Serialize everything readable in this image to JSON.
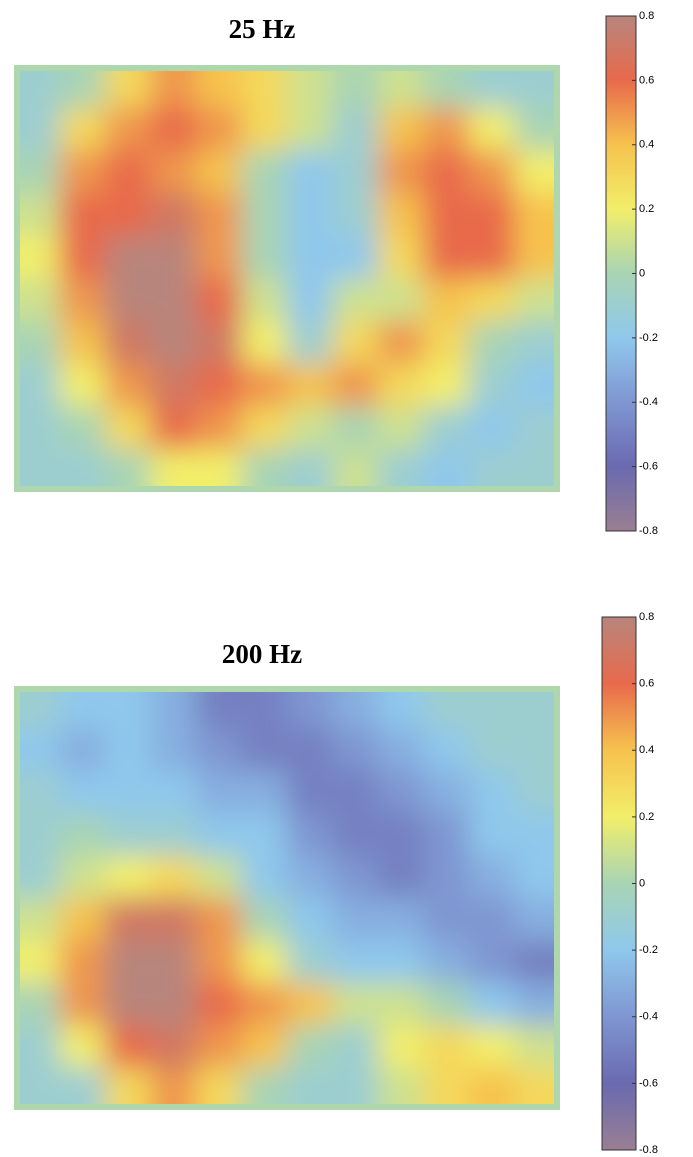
{
  "chart_data": [
    {
      "type": "heatmap",
      "title": "25 Hz",
      "zlim": [
        -0.8,
        0.8
      ],
      "zticks": [
        0.8,
        0.6,
        0.4,
        0.2,
        0,
        -0.2,
        -0.4,
        -0.6,
        -0.8
      ],
      "colormap": [
        "#9a7f93",
        "#6a6ab0",
        "#7f96d2",
        "#8fc8ec",
        "#a8d4b4",
        "#f2ee6a",
        "#f6c24e",
        "#e86a4c",
        "#b8857c"
      ],
      "values": [
        [
          -0.1,
          0,
          0.3,
          0.5,
          0.4,
          0.3,
          0.1,
          0,
          0.1,
          0,
          -0.1,
          -0.1
        ],
        [
          -0.1,
          0.3,
          0.5,
          0.6,
          0.5,
          0.3,
          0.1,
          -0.1,
          0.4,
          0.5,
          0.2,
          0
        ],
        [
          0,
          0.5,
          0.6,
          0.5,
          0.4,
          0,
          -0.2,
          -0.1,
          0.5,
          0.6,
          0.5,
          0.2
        ],
        [
          0.1,
          0.6,
          0.6,
          0.7,
          0.5,
          0,
          -0.2,
          -0.1,
          0.4,
          0.6,
          0.6,
          0.4
        ],
        [
          0.2,
          0.6,
          0.8,
          0.8,
          0.5,
          0,
          -0.2,
          -0.2,
          0.3,
          0.6,
          0.6,
          0.4
        ],
        [
          0.1,
          0.5,
          0.8,
          0.8,
          0.6,
          0.1,
          -0.2,
          0.1,
          0.1,
          0.4,
          0.3,
          0.1
        ],
        [
          0,
          0.4,
          0.7,
          0.8,
          0.7,
          0.2,
          -0.1,
          0.3,
          0.5,
          0.3,
          0,
          -0.1
        ],
        [
          -0.1,
          0.2,
          0.5,
          0.7,
          0.6,
          0.5,
          0.4,
          0.5,
          0.3,
          0.2,
          -0.1,
          -0.2
        ],
        [
          -0.1,
          0,
          0.3,
          0.6,
          0.5,
          0.3,
          0.1,
          0,
          0.1,
          -0.1,
          -0.2,
          -0.1
        ],
        [
          -0.1,
          -0.1,
          0,
          0.2,
          0.2,
          0,
          -0.1,
          0.1,
          -0.1,
          -0.2,
          -0.1,
          -0.1
        ]
      ]
    },
    {
      "type": "heatmap",
      "title": "200 Hz",
      "zlim": [
        -0.8,
        0.8
      ],
      "zticks": [
        0.8,
        0.6,
        0.4,
        0.2,
        0,
        -0.2,
        -0.4,
        -0.6,
        -0.8
      ],
      "colormap": [
        "#9a7f93",
        "#6a6ab0",
        "#7f96d2",
        "#8fc8ec",
        "#a8d4b4",
        "#f2ee6a",
        "#f6c24e",
        "#e86a4c",
        "#b8857c"
      ],
      "values": [
        [
          -0.1,
          -0.2,
          -0.2,
          -0.3,
          -0.5,
          -0.5,
          -0.4,
          -0.3,
          -0.2,
          -0.1,
          -0.1,
          -0.1
        ],
        [
          -0.2,
          -0.3,
          -0.2,
          -0.3,
          -0.4,
          -0.5,
          -0.5,
          -0.4,
          -0.3,
          -0.2,
          -0.1,
          -0.1
        ],
        [
          -0.1,
          -0.2,
          -0.2,
          -0.2,
          -0.3,
          -0.3,
          -0.5,
          -0.5,
          -0.4,
          -0.3,
          -0.2,
          -0.1
        ],
        [
          -0.1,
          0,
          -0.1,
          -0.1,
          -0.2,
          -0.2,
          -0.4,
          -0.5,
          -0.5,
          -0.4,
          -0.2,
          -0.2
        ],
        [
          -0.1,
          0.1,
          0.2,
          0.3,
          0.1,
          -0.2,
          -0.3,
          -0.4,
          -0.5,
          -0.4,
          -0.3,
          -0.2
        ],
        [
          0.1,
          0.4,
          0.7,
          0.7,
          0.5,
          0,
          -0.2,
          -0.3,
          -0.3,
          -0.4,
          -0.4,
          -0.3
        ],
        [
          0.2,
          0.5,
          0.8,
          0.8,
          0.5,
          0.2,
          -0.1,
          -0.2,
          -0.2,
          -0.3,
          -0.4,
          -0.5
        ],
        [
          0,
          0.5,
          0.8,
          0.8,
          0.6,
          0.5,
          0.4,
          0.1,
          0.1,
          0,
          -0.2,
          -0.3
        ],
        [
          -0.1,
          0.2,
          0.6,
          0.7,
          0.5,
          0.4,
          0,
          -0.1,
          0.2,
          0.3,
          0.2,
          0.1
        ],
        [
          -0.1,
          -0.1,
          0.3,
          0.5,
          0.3,
          0,
          -0.1,
          -0.1,
          0.1,
          0.3,
          0.4,
          0.3
        ]
      ]
    }
  ]
}
